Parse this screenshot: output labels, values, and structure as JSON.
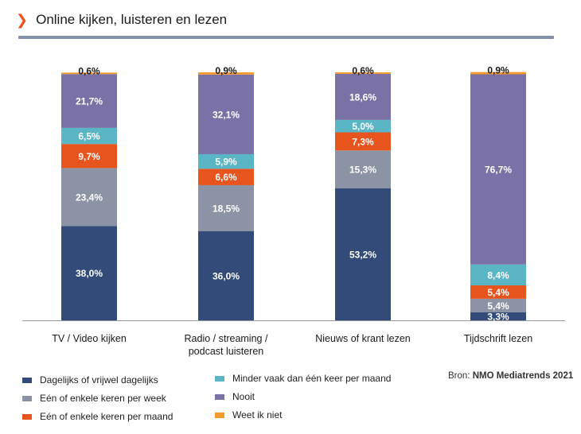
{
  "header": {
    "title": "Online kijken, luisteren en lezen"
  },
  "source": {
    "prefix": "Bron:",
    "name": "NMO Mediatrends 2021"
  },
  "colors": {
    "chevron": "#e8541e",
    "rule": "#8391aa",
    "axis": "#999999"
  },
  "chart_data": {
    "type": "bar",
    "stacked": true,
    "title": "Online kijken, luisteren en lezen",
    "xlabel": "",
    "ylabel": "",
    "ylim": [
      0,
      100
    ],
    "grid": false,
    "legend_position": "bottom",
    "categories": [
      [
        "TV / Video kijken"
      ],
      [
        "Radio / streaming /",
        "podcast luisteren"
      ],
      [
        "Nieuws of krant lezen"
      ],
      [
        "Tijdschrift lezen"
      ]
    ],
    "series": [
      {
        "name": "Dagelijks of vrijwel dagelijks",
        "color": "#324b78",
        "values": [
          38.0,
          36.0,
          53.2,
          3.3
        ],
        "labels": [
          "38,0%",
          "36,0%",
          "53,2%",
          "3,3%"
        ]
      },
      {
        "name": "Eén of enkele keren per week",
        "color": "#8c93a4",
        "values": [
          23.4,
          18.5,
          15.3,
          5.4
        ],
        "labels": [
          "23,4%",
          "18,5%",
          "15,3%",
          "5,4%"
        ]
      },
      {
        "name": "Eén of enkele keren per maand",
        "color": "#e8541e",
        "values": [
          9.7,
          6.6,
          7.3,
          5.4
        ],
        "labels": [
          "9,7%",
          "6,6%",
          "7,3%",
          "5,4%"
        ]
      },
      {
        "name": "Minder vaak dan één keer per maand",
        "color": "#5ab5c5",
        "values": [
          6.5,
          5.9,
          5.0,
          8.4
        ],
        "labels": [
          "6,5%",
          "5,9%",
          "5,0%",
          "8,4%"
        ]
      },
      {
        "name": "Nooit",
        "color": "#7a72a6",
        "values": [
          21.7,
          32.1,
          18.6,
          76.7
        ],
        "labels": [
          "21,7%",
          "32,1%",
          "18,6%",
          "76,7%"
        ]
      },
      {
        "name": "Weet ik niet",
        "color": "#f39a2a",
        "values": [
          0.6,
          0.9,
          0.6,
          0.9
        ],
        "labels": [
          "0,6%",
          "0,9%",
          "0,6%",
          "0,9%"
        ]
      }
    ]
  }
}
